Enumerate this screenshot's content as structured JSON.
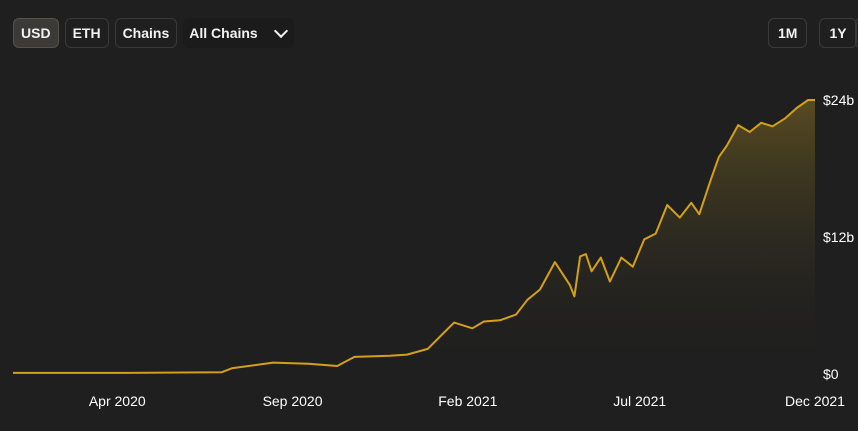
{
  "toolbar": {
    "currency_buttons": [
      {
        "label": "USD",
        "active": true
      },
      {
        "label": "ETH",
        "active": false
      }
    ],
    "chains_button": "Chains",
    "chain_select": {
      "value": "All Chains",
      "icon": "chevron-down-icon"
    }
  },
  "range_buttons": [
    "1M",
    "1Y"
  ],
  "colors": {
    "line": "#d4a017",
    "fill_top": "#6b5a22",
    "background": "#1f1f1f"
  },
  "chart_data": {
    "type": "area",
    "title": "",
    "xlabel": "",
    "ylabel": "",
    "x_tick_labels": [
      "Apr 2020",
      "Sep 2020",
      "Feb 2021",
      "Jul 2021",
      "Dec 2021"
    ],
    "y_tick_labels": [
      "$0",
      "$12b",
      "$24b"
    ],
    "x_ticks": [
      "2020-04-01",
      "2020-09-01",
      "2021-02-01",
      "2021-07-01",
      "2021-12-01"
    ],
    "y_ticks": [
      0,
      12,
      24
    ],
    "ylim": [
      0,
      24
    ],
    "y_unit": "billion USD",
    "grid": false,
    "series": [
      {
        "x": [
          "2020-01-01",
          "2020-04-01",
          "2020-07-01",
          "2020-07-10",
          "2020-08-15",
          "2020-09-15",
          "2020-10-10",
          "2020-10-25",
          "2020-11-25",
          "2020-12-10",
          "2020-12-28",
          "2021-01-10",
          "2021-01-20",
          "2021-02-05",
          "2021-02-15",
          "2021-03-01",
          "2021-03-15",
          "2021-03-25",
          "2021-04-05",
          "2021-04-18",
          "2021-05-01",
          "2021-05-05",
          "2021-05-10",
          "2021-05-15",
          "2021-05-20",
          "2021-05-28",
          "2021-06-05",
          "2021-06-15",
          "2021-06-25",
          "2021-07-05",
          "2021-07-15",
          "2021-07-25",
          "2021-08-05",
          "2021-08-15",
          "2021-08-22",
          "2021-09-01",
          "2021-09-08",
          "2021-09-15",
          "2021-09-25",
          "2021-10-05",
          "2021-10-15",
          "2021-10-25",
          "2021-11-05",
          "2021-11-15",
          "2021-11-25",
          "2021-12-01"
        ],
        "y": [
          0.1,
          0.1,
          0.15,
          0.5,
          1.0,
          0.9,
          0.7,
          1.5,
          1.6,
          1.7,
          2.2,
          3.5,
          4.5,
          4.0,
          4.6,
          4.7,
          5.2,
          6.5,
          7.4,
          9.8,
          7.8,
          6.8,
          10.3,
          10.5,
          9.0,
          10.2,
          8.1,
          10.2,
          9.4,
          11.8,
          12.3,
          14.8,
          13.7,
          15.0,
          14.0,
          17.0,
          19.0,
          20.0,
          21.8,
          21.2,
          22.0,
          21.7,
          22.4,
          23.3,
          24.0,
          24.0
        ]
      }
    ]
  }
}
